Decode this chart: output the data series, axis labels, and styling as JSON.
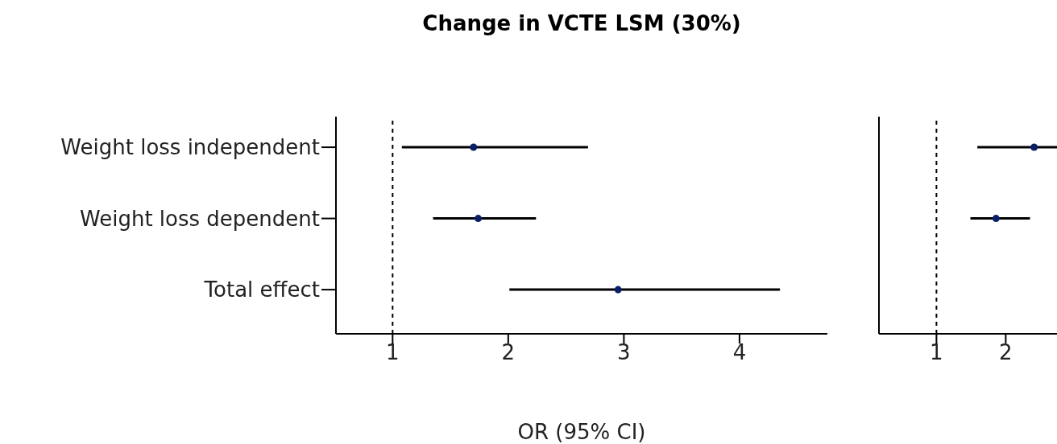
{
  "chart_data": [
    {
      "type": "scatter",
      "orientation": "horizontal",
      "title": "Change in VCTE LSM (30%)",
      "xlabel": "OR (95% CI)",
      "categories": [
        "Weight loss independent",
        "Weight loss dependent",
        "Total effect"
      ],
      "values": [
        1.7,
        1.74,
        2.95
      ],
      "errors": [
        [
          1.08,
          2.69
        ],
        [
          1.35,
          2.24
        ],
        [
          2.01,
          4.35
        ]
      ],
      "color": "#0b1f66",
      "marker": "circle",
      "xlim": [
        0.51,
        4.76
      ],
      "xticks": [
        1,
        2,
        3,
        4
      ],
      "ref_lines": [
        {
          "axis": "x",
          "value": 1,
          "color": "#000000",
          "line_style": "dashed"
        }
      ]
    },
    {
      "type": "scatter",
      "orientation": "horizontal",
      "categories": [
        null,
        null,
        null
      ],
      "values": [
        2.41,
        1.86,
        null
      ],
      "errors": [
        [
          1.59,
          2.74
        ],
        [
          1.49,
          2.35
        ],
        null
      ],
      "color": "#0b1f66",
      "marker": "circle",
      "xlim": [
        0.17,
        2.74
      ],
      "xticks": [
        1,
        2
      ],
      "tick_labels": "x",
      "ref_lines": [
        {
          "axis": "x",
          "value": 1,
          "color": "#000000",
          "line_style": "dashed"
        }
      ]
    }
  ]
}
